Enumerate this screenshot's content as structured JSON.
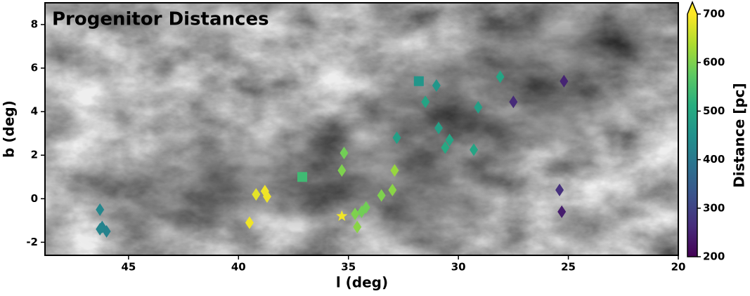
{
  "chart_data": {
    "type": "scatter",
    "title": "Progenitor Distances",
    "x_label": "l (deg)",
    "y_label": "b (deg)",
    "colorbar_label": "Distance [pc]",
    "xlim": [
      48.8,
      20
    ],
    "ylim": [
      -2.6,
      9.0
    ],
    "xticks": [
      45,
      40,
      35,
      30,
      25,
      20
    ],
    "yticks": [
      -2,
      0,
      2,
      4,
      6,
      8
    ],
    "colormap": "viridis",
    "clim": [
      200,
      700
    ],
    "cticks": [
      200,
      300,
      400,
      500,
      600,
      700
    ],
    "x": [
      46.3,
      46.2,
      46.0,
      46.3,
      39.2,
      38.8,
      38.7,
      39.5,
      37.1,
      35.3,
      35.2,
      35.3,
      34.7,
      34.6,
      34.4,
      34.2,
      33.5,
      33.0,
      32.9,
      32.8,
      31.8,
      31.0,
      31.5,
      30.9,
      30.4,
      30.6,
      29.1,
      29.3,
      28.1,
      27.5,
      25.2,
      25.4,
      25.3
    ],
    "values": [
      -0.5,
      -1.3,
      -1.5,
      -1.4,
      0.2,
      0.35,
      0.1,
      -1.1,
      1.0,
      -0.8,
      2.1,
      1.3,
      -0.7,
      -1.3,
      -0.6,
      -0.4,
      0.15,
      0.4,
      1.3,
      2.8,
      5.4,
      5.2,
      4.45,
      3.25,
      2.7,
      2.35,
      4.2,
      2.25,
      5.6,
      4.45,
      5.4,
      0.4,
      -0.6
    ],
    "distance": [
      430,
      420,
      420,
      425,
      680,
      690,
      690,
      690,
      540,
      690,
      590,
      600,
      600,
      610,
      590,
      590,
      600,
      610,
      620,
      480,
      460,
      460,
      490,
      480,
      490,
      500,
      480,
      490,
      490,
      260,
      250,
      270,
      240
    ],
    "markers": [
      "diamond",
      "diamond",
      "diamond",
      "diamond",
      "diamond",
      "diamond",
      "diamond",
      "diamond",
      "square",
      "star",
      "diamond",
      "diamond",
      "diamond",
      "diamond",
      "diamond",
      "diamond",
      "diamond",
      "diamond",
      "diamond",
      "diamond",
      "square",
      "diamond",
      "diamond",
      "diamond",
      "diamond",
      "diamond",
      "diamond",
      "diamond",
      "diamond",
      "diamond",
      "diamond",
      "diamond",
      "diamond"
    ]
  }
}
